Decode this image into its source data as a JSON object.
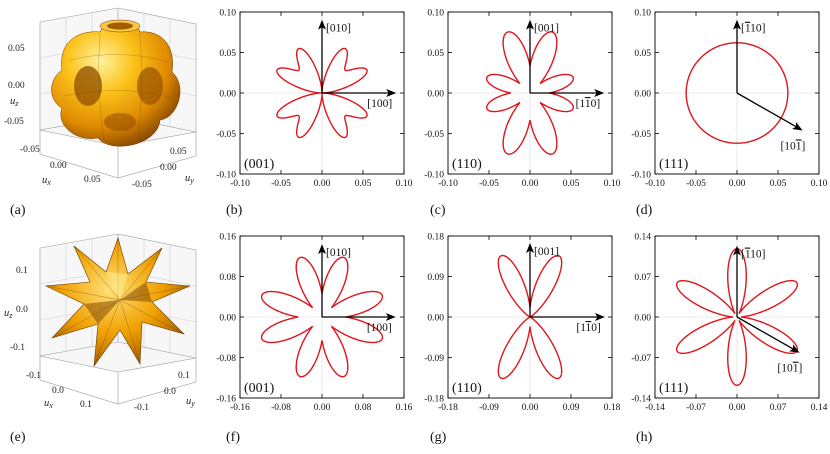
{
  "panel_labels": [
    "(a)",
    "(b)",
    "(c)",
    "(d)",
    "(e)",
    "(f)",
    "(g)",
    "(h)"
  ],
  "axis3d": {
    "ux": "u",
    "uy": "u",
    "uz": "u",
    "sx": "x",
    "sy": "y",
    "sz": "z",
    "row1": {
      "z_ticks": [
        "0.05",
        "0.00",
        "-0.05"
      ],
      "x_ticks": [
        "-0.05",
        "0.00",
        "0.05"
      ],
      "y_ticks": [
        "0.05",
        "0.00",
        "-0.05"
      ]
    },
    "row2": {
      "z_ticks": [
        "0.1",
        "0.0",
        "-0.1"
      ],
      "x_ticks": [
        "-0.1",
        "0.0",
        "0.1"
      ],
      "y_ticks": [
        "0.1",
        "0.0",
        "-0.1"
      ]
    }
  },
  "colors": {
    "curve": "#e0151b",
    "surface": "#f4a400",
    "axis": "#000000"
  },
  "chart_data": [
    {
      "type": "line",
      "panel": "(b)",
      "plane": "(001)",
      "xlim": [
        -0.1,
        0.1
      ],
      "ylim": [
        -0.1,
        0.1
      ],
      "xticks": [
        "-0.10",
        "-0.05",
        "0.00",
        "0.05",
        "0.10"
      ],
      "yticks": [
        "0.10",
        "0.05",
        "0.00",
        "-0.05",
        "-0.10"
      ],
      "directions": [
        {
          "label": "[010]",
          "angle_deg": 90,
          "length": 0.088
        },
        {
          "label": "[100]",
          "angle_deg": 0,
          "length": 0.088
        }
      ],
      "curve": {
        "form": "petal",
        "amplitude": 0.08,
        "lobes": 4,
        "phase_deg": 45,
        "power": 1
      }
    },
    {
      "type": "line",
      "panel": "(c)",
      "plane": "(110)",
      "xlim": [
        -0.1,
        0.1
      ],
      "ylim": [
        -0.1,
        0.1
      ],
      "xticks": [
        "-0.10",
        "-0.05",
        "0.00",
        "0.05",
        "0.10"
      ],
      "yticks": [
        "0.10",
        "0.05",
        "0.00",
        "-0.05",
        "-0.10"
      ],
      "directions": [
        {
          "label": "[001]",
          "angle_deg": 90,
          "length": 0.088
        },
        {
          "label": "[1-10]",
          "angle_deg": 0,
          "length": 0.088
        }
      ],
      "curve": {
        "form": "lobes",
        "lobes_deg": [
          70,
          110,
          250,
          290,
          20,
          160,
          200,
          340
        ],
        "lengths": [
          0.08,
          0.08,
          0.08,
          0.08,
          0.056,
          0.056,
          0.056,
          0.056
        ],
        "width": 3.5
      }
    },
    {
      "type": "line",
      "panel": "(d)",
      "plane": "(111)",
      "xlim": [
        -0.1,
        0.1
      ],
      "ylim": [
        -0.1,
        0.1
      ],
      "xticks": [
        "-0.10",
        "-0.05",
        "0.00",
        "0.05",
        "0.10"
      ],
      "yticks": [
        "0.10",
        "0.05",
        "0.00",
        "-0.05",
        "-0.10"
      ],
      "directions": [
        {
          "label": "[-110]",
          "angle_deg": 90,
          "length": 0.088
        },
        {
          "label": "[10-1]",
          "angle_deg": -30,
          "length": 0.09
        }
      ],
      "curve": {
        "form": "circle",
        "radius": 0.062
      }
    },
    {
      "type": "line",
      "panel": "(f)",
      "plane": "(001)",
      "xlim": [
        -0.16,
        0.16
      ],
      "ylim": [
        -0.16,
        0.16
      ],
      "xticks": [
        "-0.16",
        "-0.08",
        "0.00",
        "0.08",
        "0.16"
      ],
      "yticks": [
        "0.16",
        "0.08",
        "0.00",
        "-0.08",
        "-0.16"
      ],
      "directions": [
        {
          "label": "[010]",
          "angle_deg": 90,
          "length": 0.14
        },
        {
          "label": "[100]",
          "angle_deg": 0,
          "length": 0.14
        }
      ],
      "curve": {
        "form": "lobes",
        "lobes_deg": [
          20,
          70,
          110,
          160,
          200,
          250,
          290,
          340
        ],
        "lengths": [
          0.125,
          0.125,
          0.125,
          0.125,
          0.125,
          0.125,
          0.125,
          0.125
        ],
        "width": 4
      }
    },
    {
      "type": "line",
      "panel": "(g)",
      "plane": "(110)",
      "xlim": [
        -0.18,
        0.18
      ],
      "ylim": [
        -0.18,
        0.18
      ],
      "xticks": [
        "-0.18",
        "-0.09",
        "0.00",
        "0.09",
        "0.18"
      ],
      "yticks": [
        "0.18",
        "0.09",
        "0.00",
        "-0.09",
        "-0.18"
      ],
      "directions": [
        {
          "label": "[001]",
          "angle_deg": 90,
          "length": 0.16
        },
        {
          "label": "[1-10]",
          "angle_deg": 0,
          "length": 0.16
        }
      ],
      "curve": {
        "form": "lobes",
        "lobes_deg": [
          65,
          115,
          245,
          295
        ],
        "lengths": [
          0.15,
          0.15,
          0.15,
          0.15
        ],
        "width": 5
      }
    },
    {
      "type": "line",
      "panel": "(h)",
      "plane": "(111)",
      "xlim": [
        -0.14,
        0.14
      ],
      "ylim": [
        -0.14,
        0.14
      ],
      "xticks": [
        "-0.14",
        "-0.07",
        "0.00",
        "0.07",
        "0.14"
      ],
      "yticks": [
        "0.14",
        "0.07",
        "0.00",
        "-0.07",
        "-0.14"
      ],
      "directions": [
        {
          "label": "[-110]",
          "angle_deg": 90,
          "length": 0.12
        },
        {
          "label": "[10-1]",
          "angle_deg": -30,
          "length": 0.12
        }
      ],
      "curve": {
        "form": "lobes",
        "lobes_deg": [
          30,
          90,
          150,
          210,
          270,
          330
        ],
        "lengths": [
          0.118,
          0.118,
          0.118,
          0.118,
          0.118,
          0.118
        ],
        "width": 5
      }
    }
  ]
}
